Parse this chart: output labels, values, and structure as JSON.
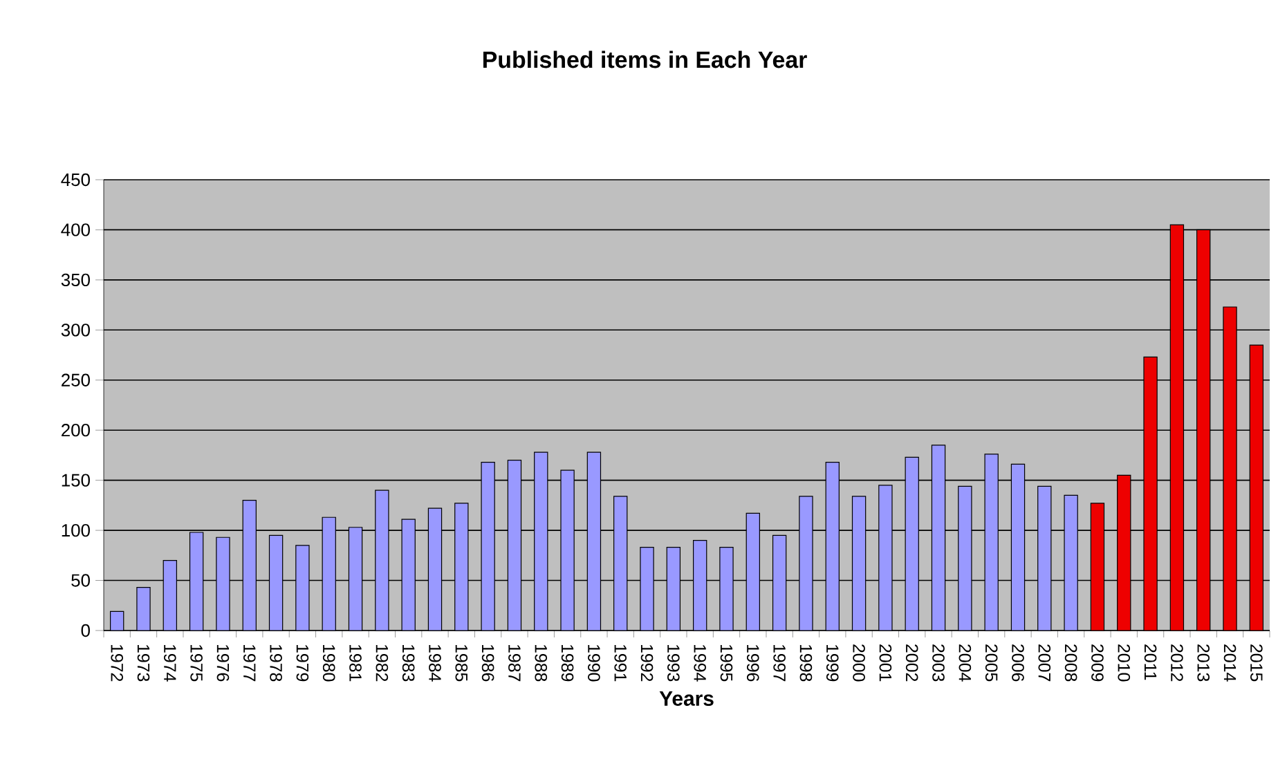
{
  "chart_data": {
    "type": "bar",
    "title": "Published items in Each Year",
    "xlabel": "Years",
    "categories": [
      "1972",
      "1973",
      "1974",
      "1975",
      "1976",
      "1977",
      "1978",
      "1979",
      "1980",
      "1981",
      "1982",
      "1983",
      "1984",
      "1985",
      "1986",
      "1987",
      "1988",
      "1989",
      "1990",
      "1991",
      "1992",
      "1993",
      "1994",
      "1995",
      "1996",
      "1997",
      "1998",
      "1999",
      "2000",
      "2001",
      "2002",
      "2003",
      "2004",
      "2005",
      "2006",
      "2007",
      "2008",
      "2009",
      "2010",
      "2011",
      "2012",
      "2013",
      "2014",
      "2015"
    ],
    "values": [
      19,
      43,
      70,
      98,
      93,
      130,
      95,
      85,
      113,
      103,
      140,
      111,
      122,
      127,
      168,
      170,
      178,
      160,
      178,
      134,
      83,
      83,
      90,
      83,
      117,
      95,
      134,
      168,
      134,
      145,
      173,
      185,
      144,
      176,
      166,
      144,
      135,
      127,
      155,
      273,
      405,
      400,
      323,
      285
    ],
    "colors": [
      "#9999ff",
      "#9999ff",
      "#9999ff",
      "#9999ff",
      "#9999ff",
      "#9999ff",
      "#9999ff",
      "#9999ff",
      "#9999ff",
      "#9999ff",
      "#9999ff",
      "#9999ff",
      "#9999ff",
      "#9999ff",
      "#9999ff",
      "#9999ff",
      "#9999ff",
      "#9999ff",
      "#9999ff",
      "#9999ff",
      "#9999ff",
      "#9999ff",
      "#9999ff",
      "#9999ff",
      "#9999ff",
      "#9999ff",
      "#9999ff",
      "#9999ff",
      "#9999ff",
      "#9999ff",
      "#9999ff",
      "#9999ff",
      "#9999ff",
      "#9999ff",
      "#9999ff",
      "#9999ff",
      "#9999ff",
      "#ee0000",
      "#ee0000",
      "#ee0000",
      "#ee0000",
      "#ee0000",
      "#ee0000",
      "#ee0000"
    ],
    "ylim": [
      0,
      450
    ],
    "yticks": [
      0,
      50,
      100,
      150,
      200,
      250,
      300,
      350,
      400,
      450
    ],
    "grid": "y"
  }
}
